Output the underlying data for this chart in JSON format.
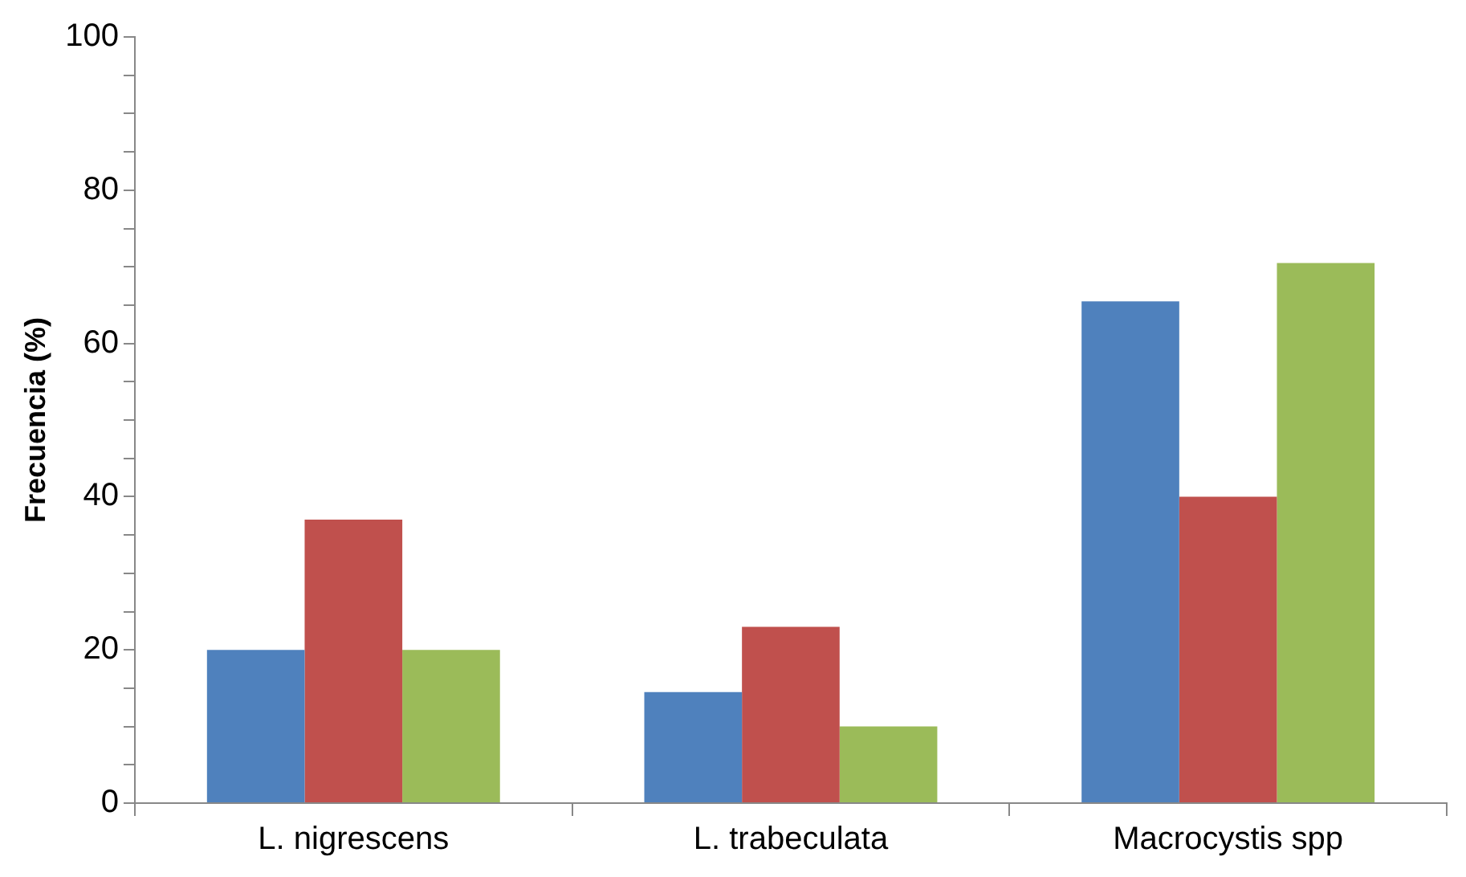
{
  "chart_data": {
    "type": "bar",
    "ylabel": "Frecuencia (%)",
    "categories": [
      "L. nigrescens",
      "L. trabeculata",
      "Macrocystis spp"
    ],
    "series": [
      {
        "color": "#4f81bd",
        "values": [
          20,
          14.5,
          65.5
        ]
      },
      {
        "color": "#c0504d",
        "values": [
          37,
          23,
          40
        ]
      },
      {
        "color": "#9bbb59",
        "values": [
          20,
          10,
          70.5
        ]
      }
    ],
    "ylim": [
      0,
      100
    ],
    "yticks": [
      0,
      {
        "value": 5,
        "label": null
      },
      {
        "value": 10,
        "label": null
      },
      {
        "value": 15,
        "label": null
      },
      20,
      {
        "value": 25,
        "label": null
      },
      {
        "value": 30,
        "label": null
      },
      {
        "value": 35,
        "label": null
      },
      40,
      {
        "value": 45,
        "label": null
      },
      {
        "value": 50,
        "label": null
      },
      {
        "value": 55,
        "label": null
      },
      60,
      {
        "value": 65,
        "label": null
      },
      {
        "value": 70,
        "label": null
      },
      {
        "value": 75,
        "label": null
      },
      80,
      {
        "value": 85,
        "label": null
      },
      {
        "value": 90,
        "label": null
      },
      {
        "value": 95,
        "label": null
      },
      100
    ],
    "grid": false,
    "legend": false
  }
}
